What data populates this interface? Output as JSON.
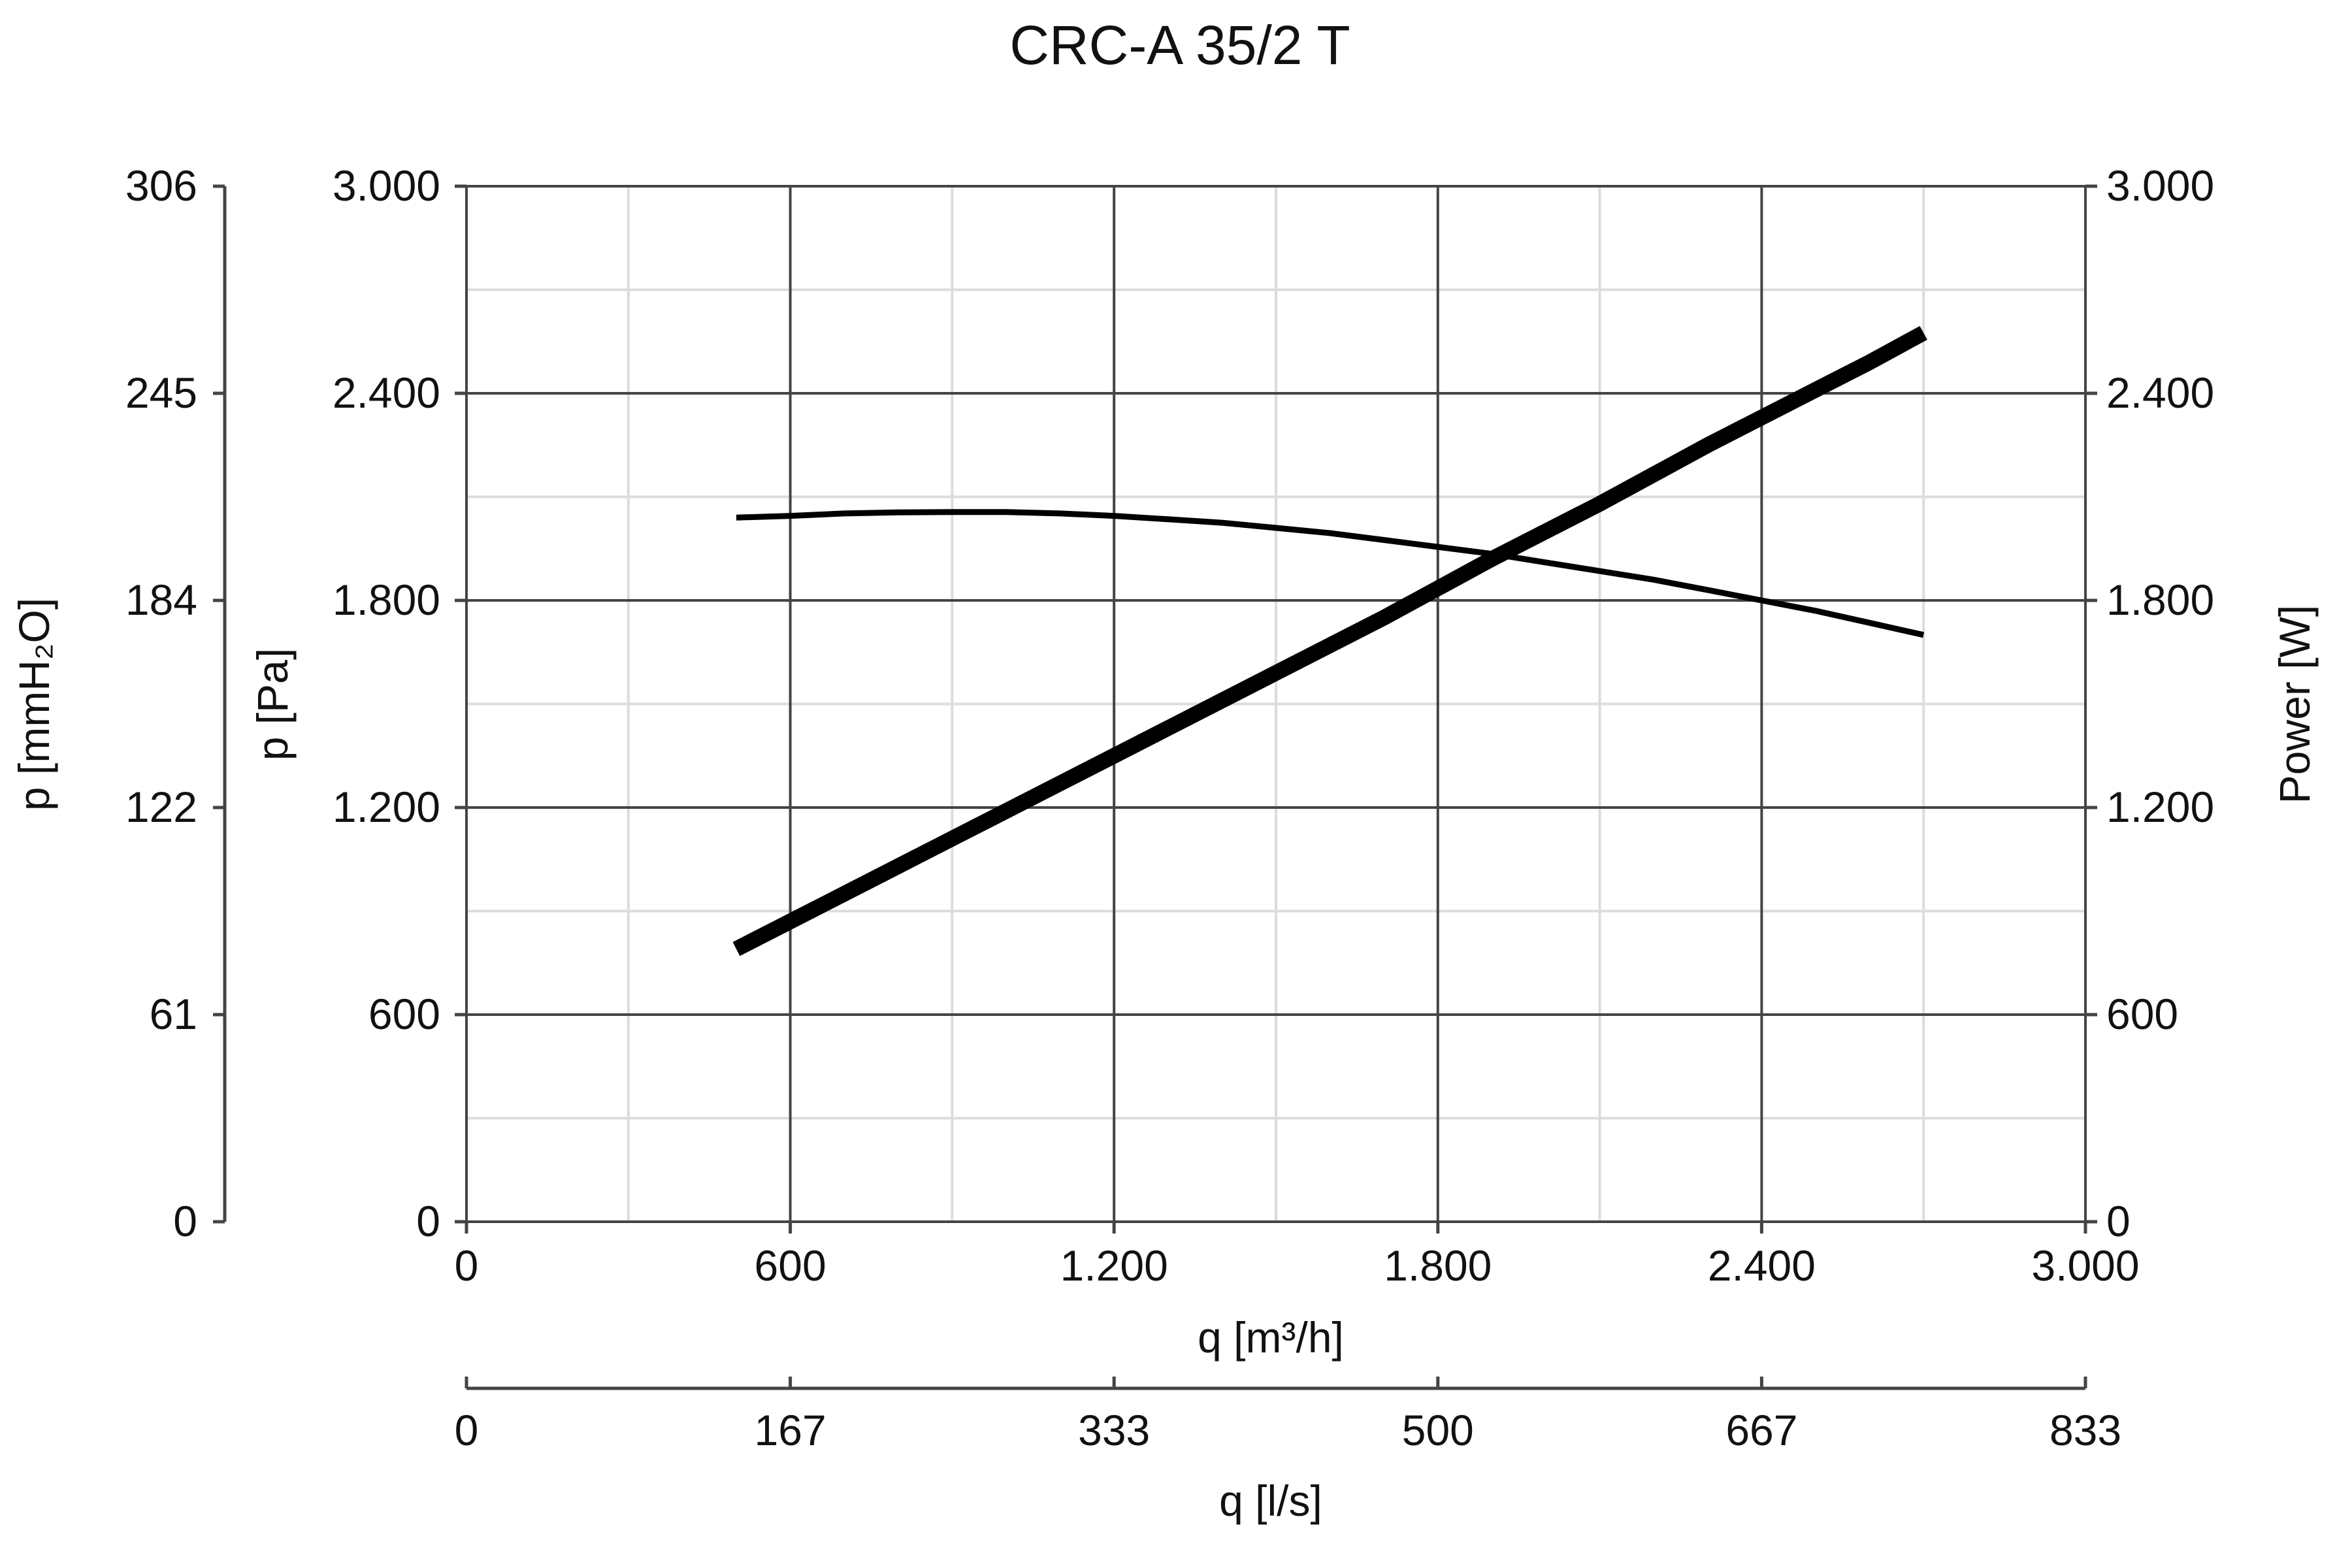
{
  "chart_data": {
    "type": "line",
    "title": "CRC-A 35/2 T",
    "x_primary": {
      "label": "q [m³/h]",
      "range": [
        0,
        3000
      ],
      "ticks": [
        0,
        600,
        1200,
        1800,
        2400,
        3000
      ],
      "tick_labels": [
        "0",
        "600",
        "1.200",
        "1.800",
        "2.400",
        "3.000"
      ]
    },
    "x_secondary": {
      "label": "q [l/s]",
      "ticks_m3h": [
        0,
        600,
        1200,
        1800,
        2400,
        3000
      ],
      "tick_labels": [
        "0",
        "167",
        "333",
        "500",
        "667",
        "833"
      ]
    },
    "y_left_outer": {
      "label": "p [mmH₂O]",
      "ticks_pa": [
        0,
        600,
        1200,
        1800,
        2400,
        3000
      ],
      "tick_labels": [
        "0",
        "61",
        "122",
        "184",
        "245",
        "306"
      ]
    },
    "y_left": {
      "label": "p [Pa]",
      "range": [
        0,
        3000
      ],
      "ticks": [
        0,
        600,
        1200,
        1800,
        2400,
        3000
      ],
      "tick_labels": [
        "0",
        "600",
        "1.200",
        "1.800",
        "2.400",
        "3.000"
      ]
    },
    "y_right": {
      "label": "Power [W]",
      "range": [
        0,
        3000
      ],
      "ticks": [
        0,
        600,
        1200,
        1800,
        2400,
        3000
      ],
      "tick_labels": [
        "0",
        "600",
        "1.200",
        "1.800",
        "2.400",
        "3.000"
      ]
    },
    "grid": true,
    "series": [
      {
        "axis": "y_left",
        "x": [
          500,
          600,
          700,
          800,
          900,
          1000,
          1100,
          1200,
          1300,
          1400,
          1500,
          1600,
          1700,
          1800,
          1900,
          2000,
          2100,
          2200,
          2300,
          2400,
          2500,
          2600,
          2700
        ],
        "values": [
          2040,
          2045,
          2052,
          2055,
          2056,
          2056,
          2052,
          2045,
          2035,
          2025,
          2010,
          1995,
          1975,
          1955,
          1935,
          1910,
          1885,
          1860,
          1830,
          1800,
          1770,
          1735,
          1700
        ]
      },
      {
        "axis": "y_right",
        "x": [
          500,
          600,
          700,
          800,
          900,
          1000,
          1100,
          1200,
          1300,
          1400,
          1500,
          1600,
          1700,
          1800,
          1900,
          2000,
          2100,
          2200,
          2300,
          2400,
          2500,
          2600,
          2700
        ],
        "values": [
          790,
          870,
          950,
          1030,
          1110,
          1190,
          1270,
          1350,
          1430,
          1510,
          1590,
          1670,
          1750,
          1835,
          1920,
          2000,
          2080,
          2165,
          2250,
          2330,
          2410,
          2490,
          2575
        ]
      }
    ]
  }
}
